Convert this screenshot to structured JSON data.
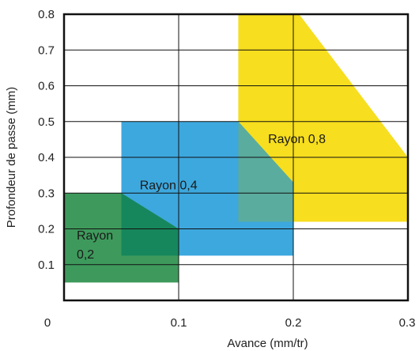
{
  "chart_data": {
    "type": "area",
    "xlabel": "Avance (mm/tr)",
    "ylabel": "Profondeur de passe (mm)",
    "xlim": [
      0,
      0.3
    ],
    "ylim": [
      0,
      0.8
    ],
    "x_ticks": [
      "0",
      "0.1",
      "0.2",
      "0.3"
    ],
    "y_ticks": [
      "0.1",
      "0.2",
      "0.3",
      "0.4",
      "0.5",
      "0.6",
      "0.7",
      "0.8"
    ],
    "grid": true,
    "regions": [
      {
        "name": "Rayon 0,8",
        "label_lines": [
          "Rayon 0,8"
        ],
        "color": "#f7de1e",
        "polygon": [
          [
            0.152,
            0.8
          ],
          [
            0.205,
            0.8
          ],
          [
            0.3,
            0.4
          ],
          [
            0.3,
            0.22
          ],
          [
            0.152,
            0.22
          ]
        ],
        "label_at": [
          0.178,
          0.44
        ]
      },
      {
        "name": "Rayon 0,4",
        "label_lines": [
          "Rayon 0,4"
        ],
        "color": "#3da8de",
        "polygon": [
          [
            0.05,
            0.5
          ],
          [
            0.152,
            0.5
          ],
          [
            0.2,
            0.33
          ],
          [
            0.2,
            0.125
          ],
          [
            0.05,
            0.125
          ]
        ],
        "label_at": [
          0.066,
          0.31
        ]
      },
      {
        "name": "Rayon 0,2",
        "label_lines": [
          "Rayon",
          "0,2"
        ],
        "color": "#3e9a5c",
        "polygon": [
          [
            0,
            0.3
          ],
          [
            0.05,
            0.3
          ],
          [
            0.1,
            0.2
          ],
          [
            0.1,
            0.05
          ],
          [
            0,
            0.05
          ]
        ],
        "label_at": [
          0.011,
          0.17
        ]
      }
    ],
    "overlaps": [
      {
        "name": "overlap-0.4-0.8",
        "color": "#5aac9e",
        "polygon": [
          [
            0.152,
            0.5
          ],
          [
            0.2,
            0.33
          ],
          [
            0.2,
            0.22
          ],
          [
            0.152,
            0.22
          ]
        ]
      },
      {
        "name": "overlap-0.2-0.4",
        "color": "#16875c",
        "polygon": [
          [
            0.05,
            0.3
          ],
          [
            0.1,
            0.2
          ],
          [
            0.1,
            0.125
          ],
          [
            0.05,
            0.125
          ]
        ]
      }
    ]
  }
}
